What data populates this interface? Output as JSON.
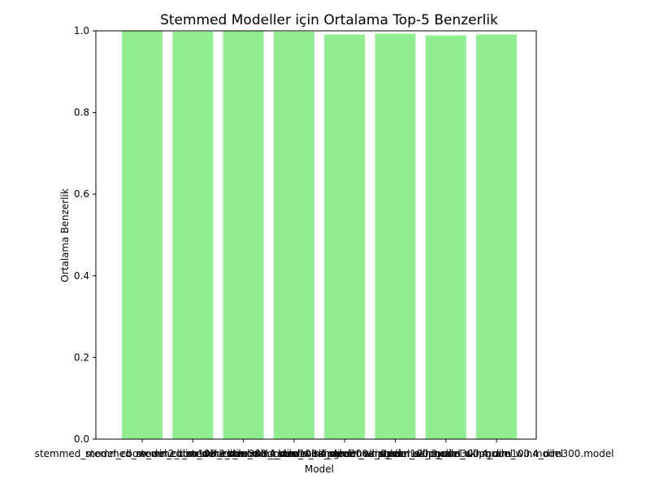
{
  "chart_data": {
    "type": "bar",
    "title": "Stemmed Modeller için Ortalama Top-5 Benzerlik",
    "xlabel": "Model",
    "ylabel": "Ortalama Benzerlik",
    "ylim": [
      0,
      1.0
    ],
    "yticks": [
      "0.0",
      "0.2",
      "0.4",
      "0.6",
      "0.8",
      "1.0"
    ],
    "grid": false,
    "bar_color": "#90ee90",
    "categories": [
      "stemmed_model_cbow_win2_dim100.model",
      "stemmed_model_cbow_win2_dim300.model",
      "stemmed_model_cbow_win4_dim100.model",
      "stemmed_model_cbow_win4_dim300.model",
      "stemmed_model_skipgram_win2_dim100.model",
      "stemmed_model_skipgram_win2_dim300.model",
      "stemmed_model_skipgram_win4_dim100.model",
      "stemmed_model_skipgram_win4_dim300.model"
    ],
    "values": [
      0.999,
      0.998,
      0.999,
      0.998,
      0.991,
      0.993,
      0.989,
      0.991
    ]
  }
}
